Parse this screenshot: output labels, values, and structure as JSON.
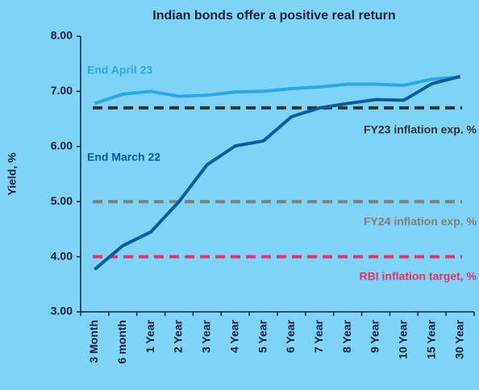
{
  "chart_data": {
    "type": "line",
    "title": "Indian bonds offer a positive real return",
    "y_label": "Yield, %",
    "categories": [
      "3 Month",
      "6 month",
      "1 Year",
      "2 Year",
      "3 Year",
      "4 Year",
      "5 Year",
      "6 Year",
      "7 Year",
      "8 Year",
      "9 Year",
      "10 Year",
      "15 Year",
      "30 Year"
    ],
    "series": [
      {
        "name": "End April 23",
        "color": "#2aa9e3",
        "values": [
          6.78,
          6.95,
          7.0,
          6.91,
          6.93,
          6.99,
          7.0,
          7.05,
          7.08,
          7.13,
          7.13,
          7.11,
          7.22,
          7.26
        ]
      },
      {
        "name": "End March 22",
        "color": "#0b5b9e",
        "values": [
          3.77,
          4.2,
          4.45,
          5.0,
          5.67,
          6.01,
          6.1,
          6.54,
          6.7,
          6.78,
          6.85,
          6.84,
          7.14,
          7.27
        ]
      }
    ],
    "reference_lines": [
      {
        "name": "FY23 inflation exp. %",
        "value": 6.7,
        "color": "#333333"
      },
      {
        "name": "FY24 inflation exp. %",
        "value": 5.0,
        "color": "#808080"
      },
      {
        "name": "RBI inflation target, %",
        "value": 4.0,
        "color": "#e3346f"
      }
    ],
    "ylim": [
      3,
      8
    ],
    "yticks": [
      {
        "value": 3,
        "label": "3.00"
      },
      {
        "value": 4,
        "label": "4.00"
      },
      {
        "value": 5,
        "label": "5.00"
      },
      {
        "value": 6,
        "label": "6.00"
      },
      {
        "value": 7,
        "label": "7.00"
      },
      {
        "value": 8,
        "label": "8.00"
      }
    ],
    "grid": false
  }
}
